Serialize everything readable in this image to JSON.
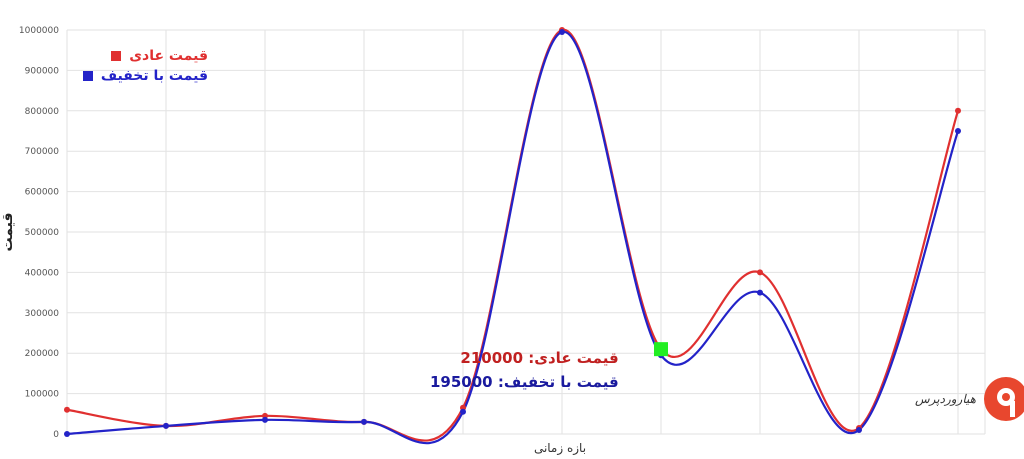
{
  "chart_data": {
    "type": "line",
    "xlabel": "بازه زمانی",
    "ylabel": "قیمت",
    "ylim": [
      0,
      1000000
    ],
    "yticks": [
      "0",
      "100000",
      "200000",
      "300000",
      "400000",
      "500000",
      "600000",
      "700000",
      "800000",
      "900000",
      "1000000"
    ],
    "series": [
      {
        "name": "قیمت عادی",
        "color": "#e03030",
        "values": [
          60000,
          20000,
          45000,
          30000,
          65000,
          1000000,
          210000,
          400000,
          15000,
          800000
        ]
      },
      {
        "name": "قیمت با تخفیف",
        "color": "#2323c8",
        "values": [
          0,
          20000,
          35000,
          30000,
          55000,
          995000,
          195000,
          350000,
          10000,
          750000
        ]
      }
    ],
    "legend_position": "top-left",
    "grid": true,
    "tooltip": {
      "index": 6,
      "color": "#22ee22",
      "regular_label": "قیمت عادی: 210000",
      "discount_label": "قیمت با تخفیف: 195000"
    }
  },
  "logo": {
    "text": "هیاروردپرس",
    "color": "#e8472e"
  }
}
